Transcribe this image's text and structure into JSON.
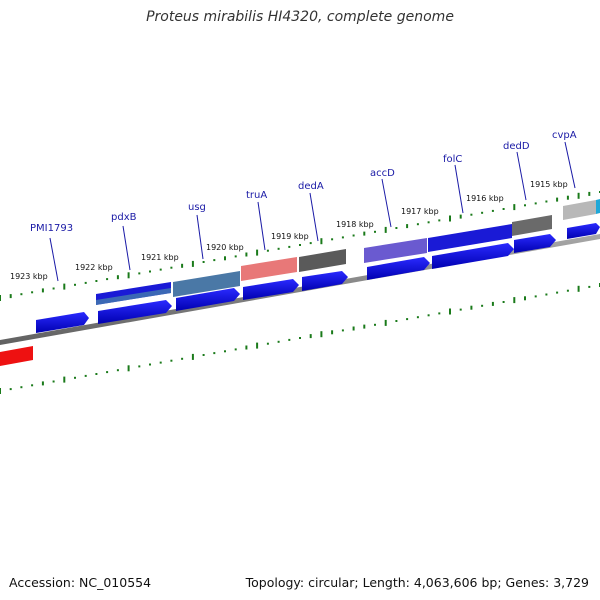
{
  "title": "Proteus mirabilis HI4320, complete genome",
  "footer": {
    "accession": "Accession: NC_010554",
    "summary": "Topology: circular; Length: 4,063,606 bp; Genes: 3,729"
  },
  "gene_labels": [
    "PMI1793",
    "pdxB",
    "usg",
    "truA",
    "dedA",
    "accD",
    "folC",
    "dedD",
    "cvpA"
  ],
  "kbp_labels": [
    "1923 kbp",
    "1922 kbp",
    "1921 kbp",
    "1920 kbp",
    "1919 kbp",
    "1918 kbp",
    "1917 kbp",
    "1916 kbp",
    "1915 kbp"
  ],
  "colors": {
    "cds": "#0000ee",
    "gc_ticks": "#1a7a1a",
    "backbone": "#808080",
    "gene_label_text": "#1a1aa6",
    "pdxB": "#1a1ad6",
    "usg": "#4a78a6",
    "truA": "#e87878",
    "dedA": "#5a5a5a",
    "accD": "#6a5ad0",
    "folC": "#1a1ad6",
    "dedD": "#6a6a6a",
    "cvpA": "#b8b8b8",
    "rRNA": "#ee1111"
  }
}
